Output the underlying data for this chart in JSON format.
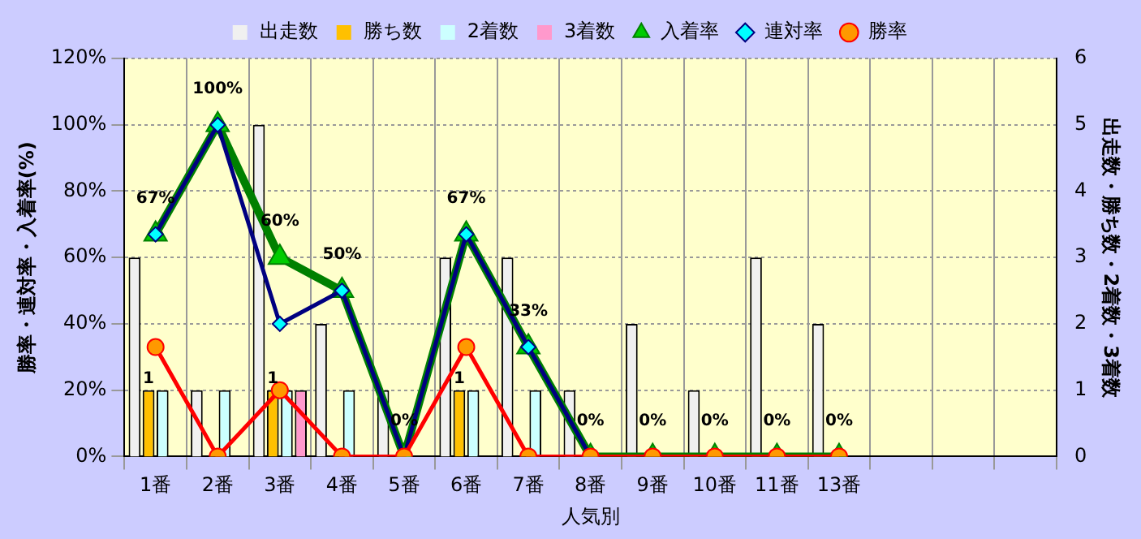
{
  "chart_data": {
    "type": "bar",
    "xlabel": "人気別",
    "ylabel": "勝率・連対率・入着率(%)",
    "y2label": "出走数・勝ち数・2着数・3着数",
    "categories": [
      "1番",
      "2番",
      "3番",
      "4番",
      "5番",
      "6番",
      "7番",
      "8番",
      "9番",
      "10番",
      "11番",
      "13番",
      null,
      null,
      null
    ],
    "series": [
      {
        "name": "出走数",
        "type": "bar",
        "axis": "y2",
        "color": "#f0f0f0",
        "values": [
          3,
          1,
          5,
          2,
          1,
          3,
          3,
          1,
          2,
          1,
          3,
          2,
          null,
          null,
          null
        ]
      },
      {
        "name": "勝ち数",
        "type": "bar",
        "axis": "y2",
        "color": "#ffc000",
        "values": [
          1,
          0,
          1,
          0,
          0,
          1,
          0,
          0,
          0,
          0,
          0,
          0,
          null,
          null,
          null
        ],
        "value_labels": [
          "1",
          null,
          "1",
          null,
          null,
          "1",
          null,
          null,
          null,
          null,
          null,
          null,
          null,
          null,
          null
        ]
      },
      {
        "name": "2着数",
        "type": "bar",
        "axis": "y2",
        "color": "#ccffff",
        "values": [
          1,
          1,
          1,
          1,
          0,
          1,
          1,
          0,
          0,
          0,
          0,
          0,
          null,
          null,
          null
        ]
      },
      {
        "name": "3着数",
        "type": "bar",
        "axis": "y2",
        "color": "#ff99cc",
        "values": [
          0,
          0,
          1,
          0,
          0,
          0,
          0,
          0,
          0,
          0,
          0,
          0,
          null,
          null,
          null
        ]
      },
      {
        "name": "入着率",
        "type": "line",
        "color": "#008000",
        "marker": "triangle",
        "values": [
          67,
          100,
          60,
          50,
          0,
          67,
          33,
          0,
          0,
          0,
          0,
          0,
          null,
          null,
          null
        ],
        "value_labels": [
          "67%",
          "100%",
          "60%",
          "50%",
          "0%",
          "67%",
          "33%",
          "0%",
          "0%",
          "0%",
          "0%",
          "0%",
          null,
          null,
          null
        ]
      },
      {
        "name": "連対率",
        "type": "line",
        "color": "#000080",
        "marker": "diamond",
        "values": [
          67,
          100,
          40,
          50,
          0,
          67,
          33,
          0,
          null,
          null,
          null,
          null,
          null,
          null,
          null
        ]
      },
      {
        "name": "勝率",
        "type": "line",
        "color": "#ff0000",
        "marker": "circle",
        "values": [
          33,
          0,
          20,
          0,
          0,
          33,
          0,
          0,
          0,
          0,
          0,
          0,
          null,
          null,
          null
        ]
      }
    ],
    "ylim": [
      0,
      120
    ],
    "yticks": [
      {
        "value": 0,
        "label": "0%"
      },
      {
        "value": 20,
        "label": "20%"
      },
      {
        "value": 40,
        "label": "40%"
      },
      {
        "value": 60,
        "label": "60%"
      },
      {
        "value": 80,
        "label": "80%"
      },
      {
        "value": 100,
        "label": "100%"
      },
      {
        "value": 120,
        "label": "120%"
      }
    ],
    "y2lim": [
      0,
      6
    ],
    "y2ticks": [
      0,
      1,
      2,
      3,
      4,
      5,
      6
    ],
    "grid": true,
    "legend": "top"
  }
}
